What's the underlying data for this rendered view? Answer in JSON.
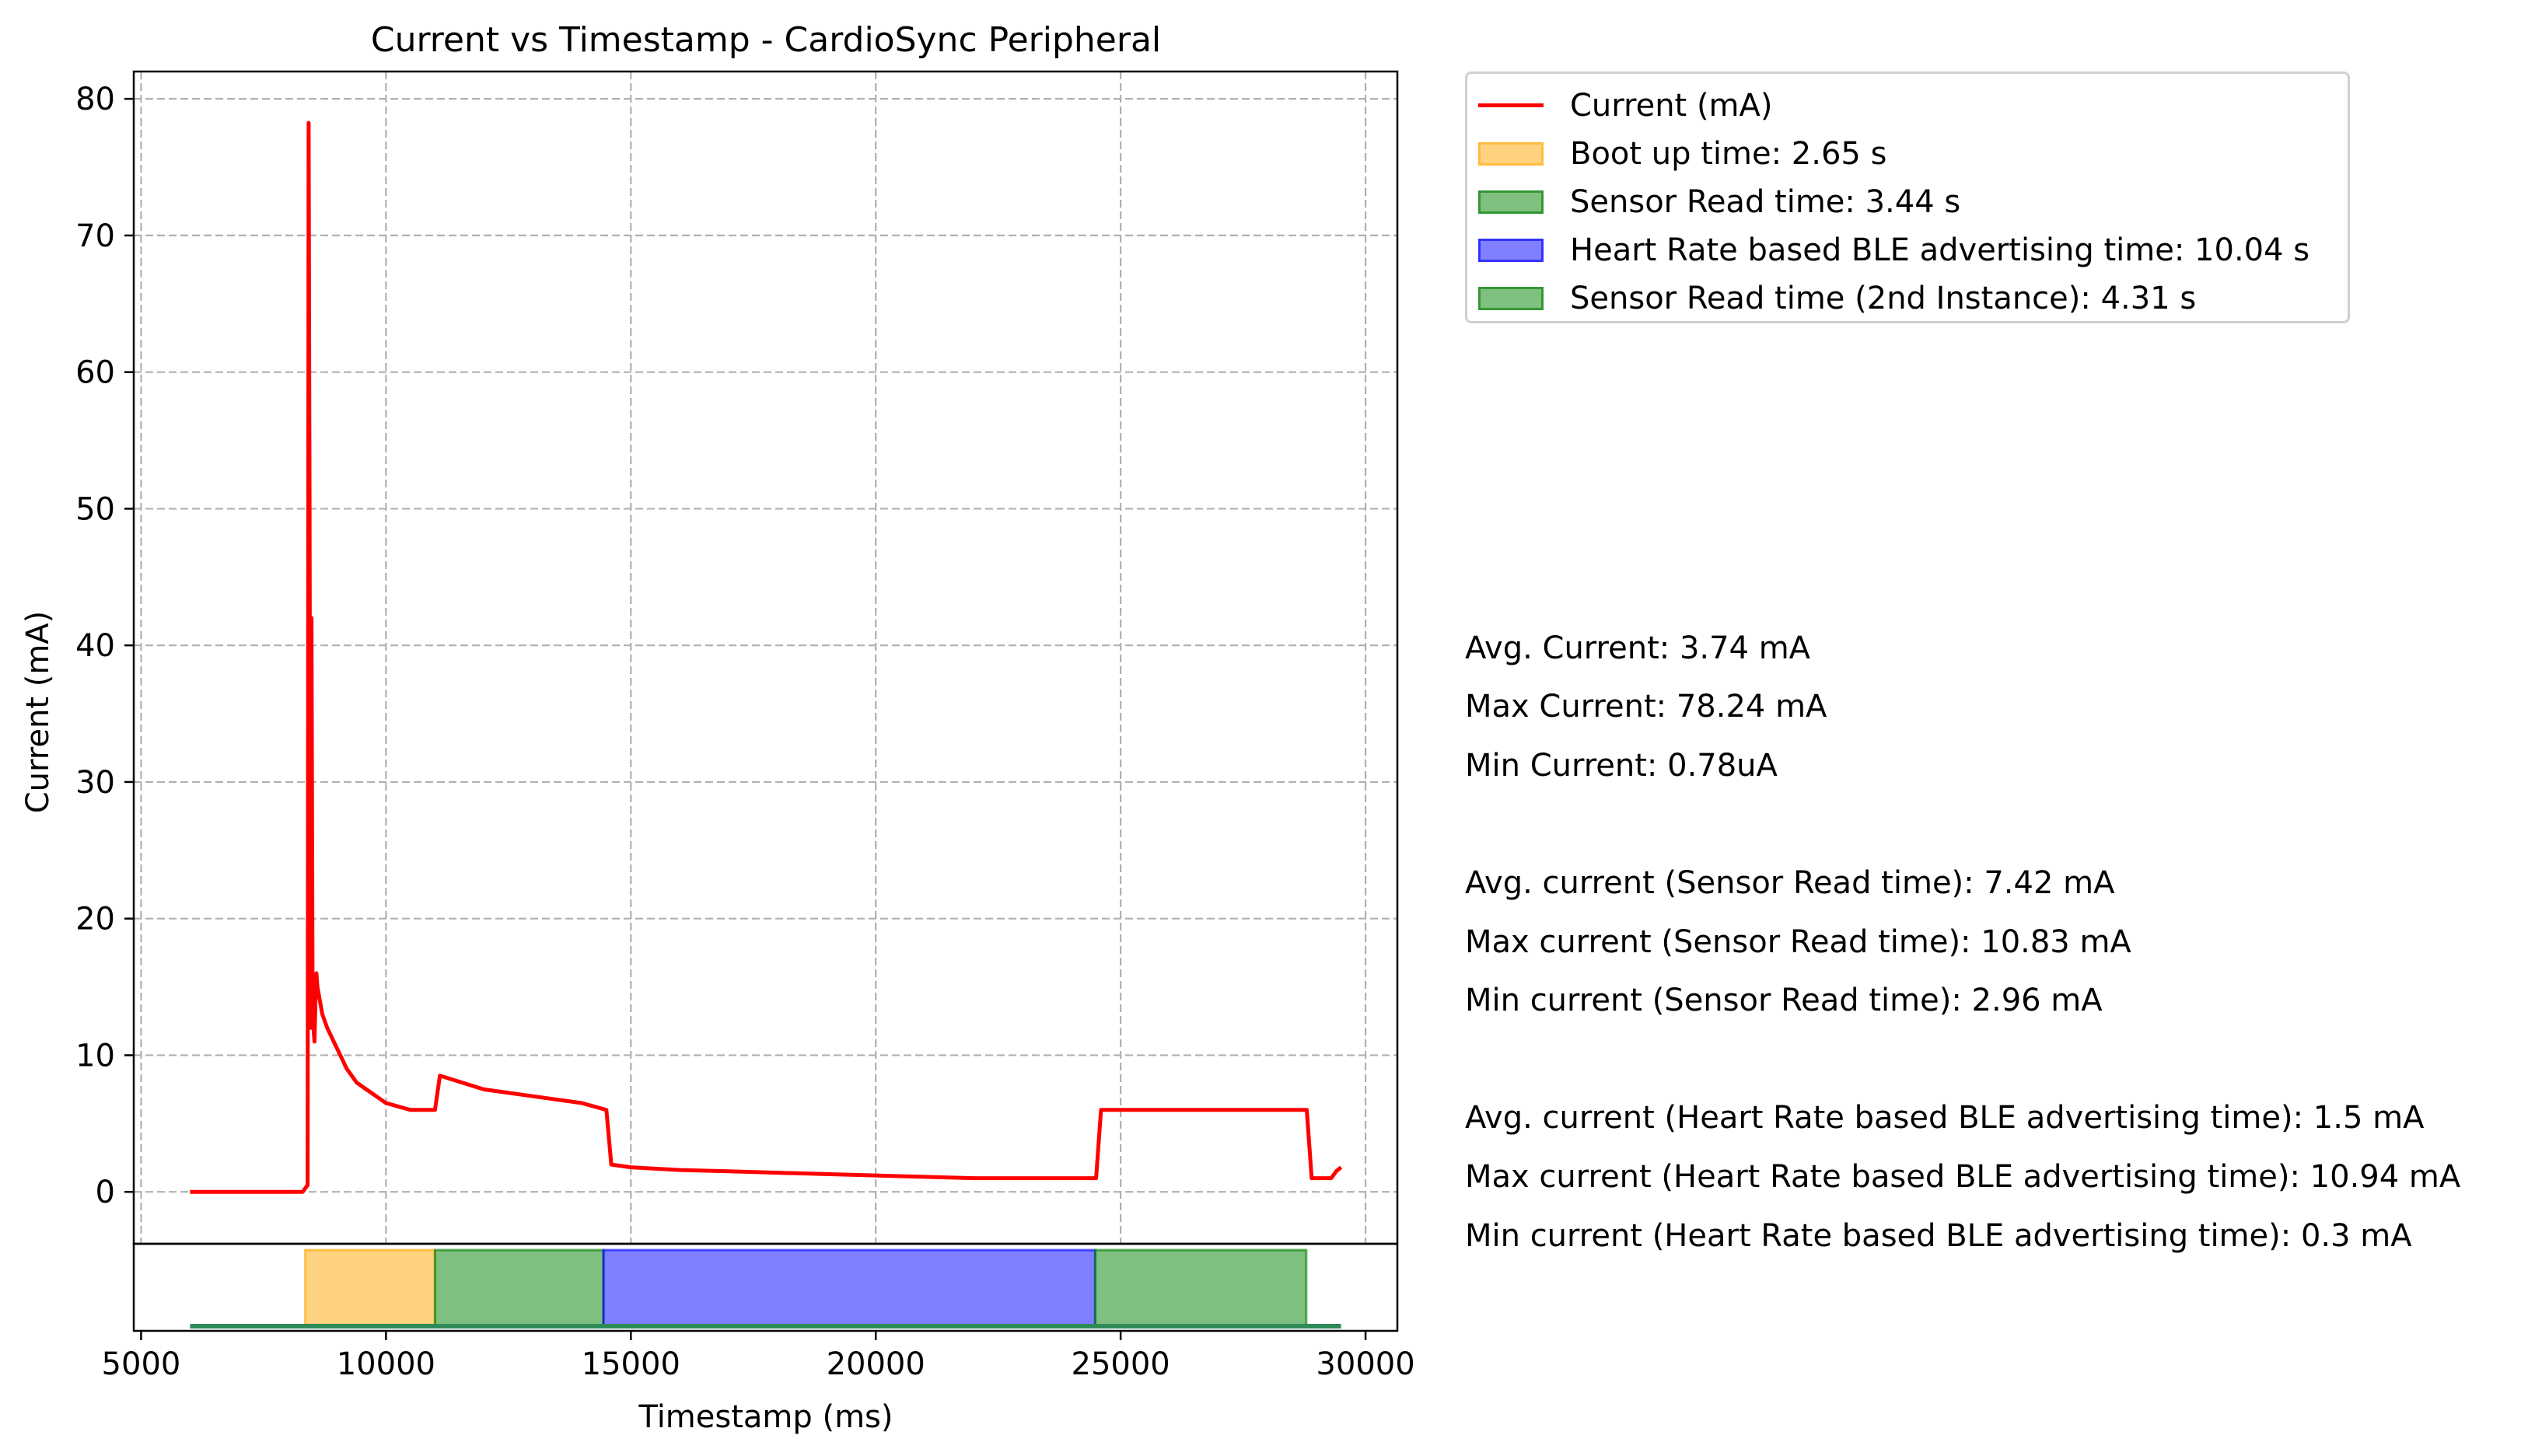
{
  "chart_data": {
    "type": "line",
    "title": "Current vs Timestamp - CardioSync Peripheral",
    "xlabel": "Timestamp (ms)",
    "ylabel": "Current (mA)",
    "xlim": [
      4850,
      30650
    ],
    "ylim": [
      -3.8,
      82
    ],
    "xticks": [
      5000,
      10000,
      15000,
      20000,
      25000,
      30000
    ],
    "yticks": [
      0,
      10,
      20,
      30,
      40,
      50,
      60,
      70,
      80
    ],
    "grid": true,
    "legend_position": "outside-right",
    "series": [
      {
        "name": "Current (mA)",
        "color": "#ff0000",
        "x": [
          6000,
          8300,
          8400,
          8420,
          8440,
          8460,
          8480,
          8500,
          8520,
          8540,
          8560,
          8580,
          8600,
          8700,
          8800,
          9000,
          9200,
          9400,
          9600,
          9800,
          10000,
          10500,
          11000,
          11100,
          12000,
          13000,
          14000,
          14500,
          14600,
          15000,
          16000,
          17000,
          18000,
          19000,
          20000,
          21000,
          22000,
          23000,
          24000,
          24500,
          24600,
          25000,
          26000,
          27000,
          28000,
          28800,
          28900,
          29300,
          29400,
          29500
        ],
        "y": [
          0,
          0,
          0.5,
          78.24,
          50,
          12,
          42,
          16,
          12,
          11,
          14,
          16,
          15,
          13,
          12,
          10.5,
          9,
          8,
          7.5,
          7,
          6.5,
          6,
          6,
          8.5,
          7.5,
          7,
          6.5,
          6,
          2,
          1.8,
          1.6,
          1.5,
          1.4,
          1.3,
          1.2,
          1.1,
          1.0,
          1.0,
          1.0,
          1.0,
          6,
          6,
          6,
          6,
          6,
          6,
          1,
          1,
          1.5,
          1.8
        ]
      }
    ],
    "phases": [
      {
        "name": "Boot up time: 2.65 s",
        "start": 8350,
        "end": 11000,
        "color": "#ffa500"
      },
      {
        "name": "Sensor Read time: 3.44 s",
        "start": 11000,
        "end": 14440,
        "color": "#008000"
      },
      {
        "name": "Heart Rate based BLE advertising time: 10.04 s",
        "start": 14440,
        "end": 24480,
        "color": "#0000ff"
      },
      {
        "name": "Sensor Read time (2nd Instance): 4.31 s",
        "start": 24480,
        "end": 28790,
        "color": "#008000"
      }
    ],
    "timeline_baseline": {
      "start": 6000,
      "end": 29500
    },
    "annotations": [
      "Avg. Current: 3.74 mA",
      "Max Current: 78.24 mA",
      "Min Current: 0.78uA",
      "Avg. current (Sensor Read time): 7.42 mA",
      "Max current (Sensor Read time): 10.83 mA",
      "Min current (Sensor Read time): 2.96 mA",
      "Avg. current (Heart Rate based BLE advertising time): 1.5 mA",
      "Max current (Heart Rate based BLE advertising time): 10.94 mA",
      "Min current (Heart Rate based BLE advertising time): 0.3 mA"
    ]
  }
}
